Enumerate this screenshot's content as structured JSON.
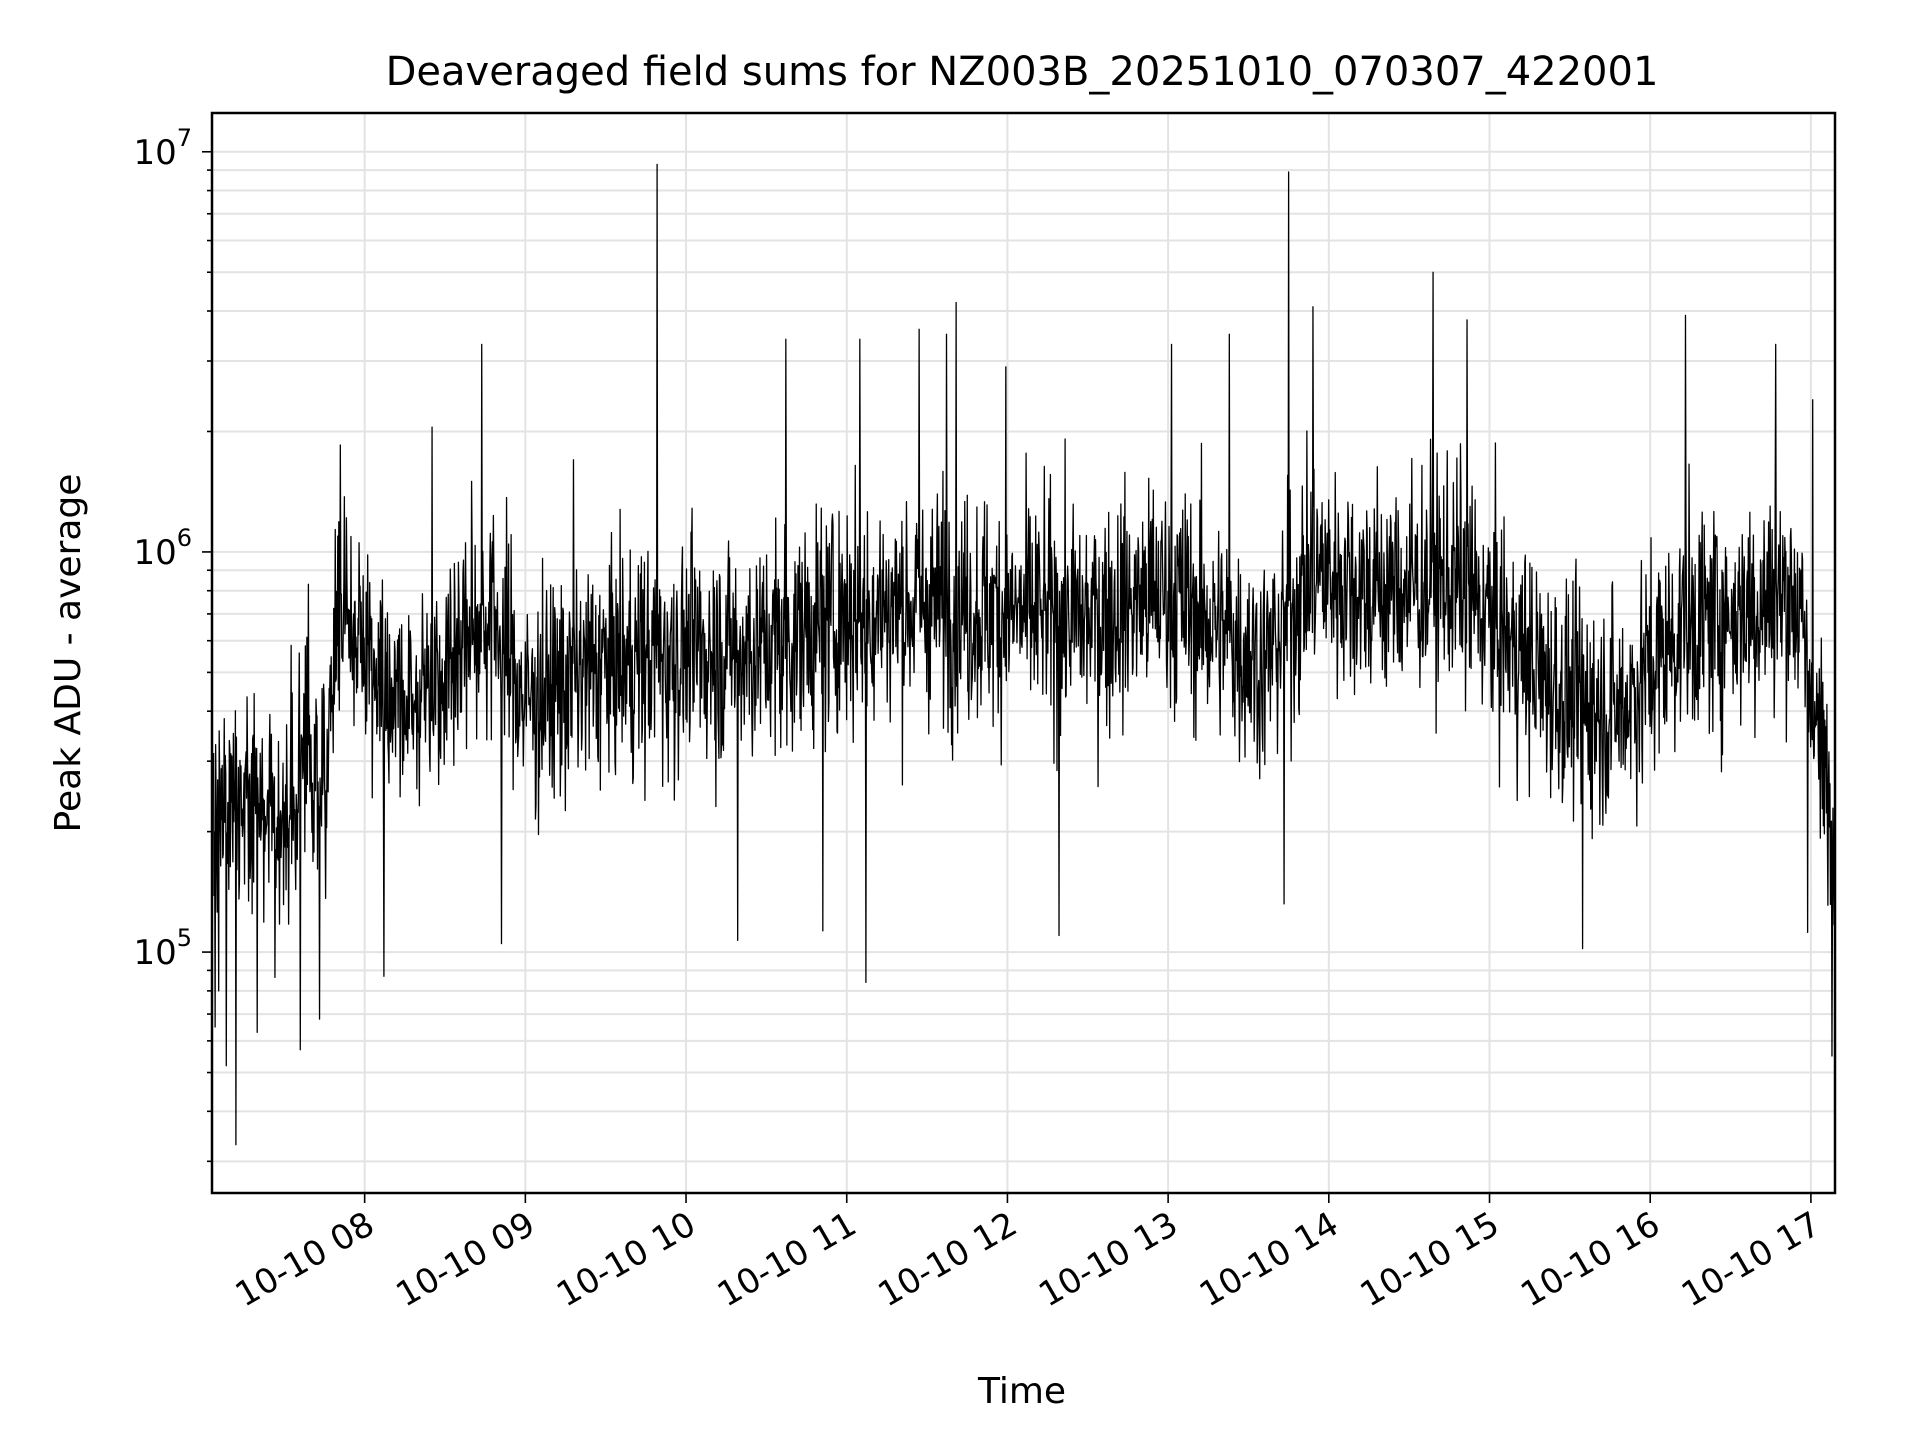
{
  "chart_data": {
    "type": "line",
    "title": "Deaveraged field sums for NZ003B_20251010_070307_422001",
    "xlabel": "Time",
    "ylabel": "Peak ADU - average",
    "yscale": "log",
    "ylim": [
      25000,
      12500000
    ],
    "xlim_hours": [
      7.05,
      17.15
    ],
    "grid": true,
    "line_color": "#000000",
    "x_ticks": [
      {
        "hour": 8,
        "label": "10-10 08"
      },
      {
        "hour": 9,
        "label": "10-10 09"
      },
      {
        "hour": 10,
        "label": "10-10 10"
      },
      {
        "hour": 11,
        "label": "10-10 11"
      },
      {
        "hour": 12,
        "label": "10-10 12"
      },
      {
        "hour": 13,
        "label": "10-10 13"
      },
      {
        "hour": 14,
        "label": "10-10 14"
      },
      {
        "hour": 15,
        "label": "10-10 15"
      },
      {
        "hour": 16,
        "label": "10-10 16"
      },
      {
        "hour": 17,
        "label": "10-10 17"
      }
    ],
    "y_ticks": [
      {
        "value": 100000,
        "base": "10",
        "exp": "5"
      },
      {
        "value": 1000000,
        "base": "10",
        "exp": "6"
      },
      {
        "value": 10000000,
        "base": "10",
        "exp": "7"
      }
    ],
    "series": [
      {
        "name": "Peak ADU - average",
        "trend_hours": [
          7.05,
          7.5,
          7.75,
          7.85,
          8.0,
          8.3,
          8.6,
          8.8,
          9.0,
          9.5,
          10.0,
          10.5,
          11.0,
          11.5,
          12.0,
          12.5,
          13.0,
          13.3,
          13.6,
          13.9,
          14.3,
          14.8,
          15.2,
          15.5,
          15.8,
          16.2,
          16.5,
          16.9,
          17.1,
          17.15
        ],
        "trend_values": [
          220000,
          230000,
          300000,
          700000,
          550000,
          420000,
          600000,
          700000,
          420000,
          520000,
          560000,
          580000,
          700000,
          750000,
          700000,
          680000,
          800000,
          650000,
          520000,
          900000,
          800000,
          850000,
          550000,
          420000,
          400000,
          650000,
          700000,
          800000,
          250000,
          150000
        ],
        "spikes": [
          {
            "hour": 7.07,
            "value": 65000
          },
          {
            "hour": 7.09,
            "value": 80000
          },
          {
            "hour": 7.14,
            "value": 52000
          },
          {
            "hour": 7.2,
            "value": 33000
          },
          {
            "hour": 7.33,
            "value": 63000
          },
          {
            "hour": 7.6,
            "value": 57000
          },
          {
            "hour": 7.65,
            "value": 830000
          },
          {
            "hour": 7.72,
            "value": 68000
          },
          {
            "hour": 7.85,
            "value": 1850000
          },
          {
            "hour": 8.12,
            "value": 87000
          },
          {
            "hour": 8.42,
            "value": 2050000
          },
          {
            "hour": 8.73,
            "value": 3300000
          },
          {
            "hour": 8.85,
            "value": 105000
          },
          {
            "hour": 9.3,
            "value": 1700000
          },
          {
            "hour": 9.82,
            "value": 9300000
          },
          {
            "hour": 10.32,
            "value": 107000
          },
          {
            "hour": 10.62,
            "value": 3400000
          },
          {
            "hour": 10.85,
            "value": 113000
          },
          {
            "hour": 11.08,
            "value": 3400000
          },
          {
            "hour": 11.12,
            "value": 84000
          },
          {
            "hour": 11.45,
            "value": 3600000
          },
          {
            "hour": 11.62,
            "value": 3500000
          },
          {
            "hour": 11.68,
            "value": 4200000
          },
          {
            "hour": 11.99,
            "value": 2900000
          },
          {
            "hour": 12.32,
            "value": 110000
          },
          {
            "hour": 13.02,
            "value": 3300000
          },
          {
            "hour": 13.38,
            "value": 3500000
          },
          {
            "hour": 13.72,
            "value": 132000
          },
          {
            "hour": 13.75,
            "value": 8900000
          },
          {
            "hour": 13.9,
            "value": 4100000
          },
          {
            "hour": 14.65,
            "value": 5000000
          },
          {
            "hour": 14.86,
            "value": 3800000
          },
          {
            "hour": 15.58,
            "value": 102000
          },
          {
            "hour": 16.22,
            "value": 3900000
          },
          {
            "hour": 16.78,
            "value": 3300000
          },
          {
            "hour": 16.98,
            "value": 112000
          },
          {
            "hour": 17.01,
            "value": 2400000
          },
          {
            "hour": 17.13,
            "value": 55000
          }
        ]
      }
    ]
  }
}
